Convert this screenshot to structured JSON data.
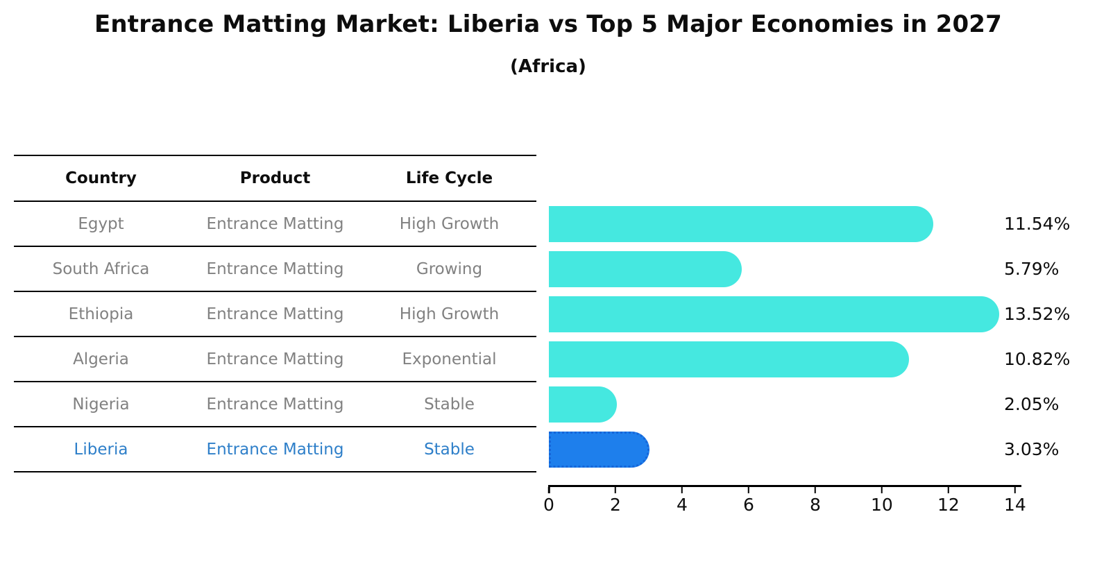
{
  "title": "Entrance Matting Market: Liberia vs Top 5 Major Economies in 2027",
  "subtitle": "(Africa)",
  "table": {
    "columns": [
      "Country",
      "Product",
      "Life Cycle"
    ],
    "rows": [
      {
        "country": "Egypt",
        "product": "Entrance Matting",
        "life_cycle": "High Growth",
        "highlight": false
      },
      {
        "country": "South Africa",
        "product": "Entrance Matting",
        "life_cycle": "Growing",
        "highlight": false
      },
      {
        "country": "Ethiopia",
        "product": "Entrance Matting",
        "life_cycle": "High Growth",
        "highlight": false
      },
      {
        "country": "Algeria",
        "product": "Entrance Matting",
        "life_cycle": "Exponential",
        "highlight": false
      },
      {
        "country": "Nigeria",
        "product": "Entrance Matting",
        "life_cycle": "Stable",
        "highlight": false
      },
      {
        "country": "Liberia",
        "product": "Entrance Matting",
        "life_cycle": "Stable",
        "highlight": true
      }
    ]
  },
  "chart_data": {
    "type": "bar",
    "orientation": "horizontal",
    "title": "Entrance Matting Market: Liberia vs Top 5 Major Economies in 2027",
    "subtitle": "(Africa)",
    "categories": [
      "Egypt",
      "South Africa",
      "Ethiopia",
      "Algeria",
      "Nigeria",
      "Liberia"
    ],
    "values": [
      11.54,
      5.79,
      13.52,
      10.82,
      2.05,
      3.03
    ],
    "value_labels": [
      "11.54%",
      "5.79%",
      "13.52%",
      "10.82%",
      "2.05%",
      "3.03%"
    ],
    "highlight_index": 5,
    "xlim": [
      0,
      14.17
    ],
    "x_ticks": [
      0,
      2,
      4,
      6,
      8,
      10,
      12,
      14
    ],
    "grid": false,
    "legend": null,
    "bar_color": "#45e8e0",
    "highlight_bar_color": "#1e7fec",
    "highlight_border_color": "#1565d8",
    "highlight_text_color": "#2e7fc9",
    "table_text_color": "#818181"
  }
}
